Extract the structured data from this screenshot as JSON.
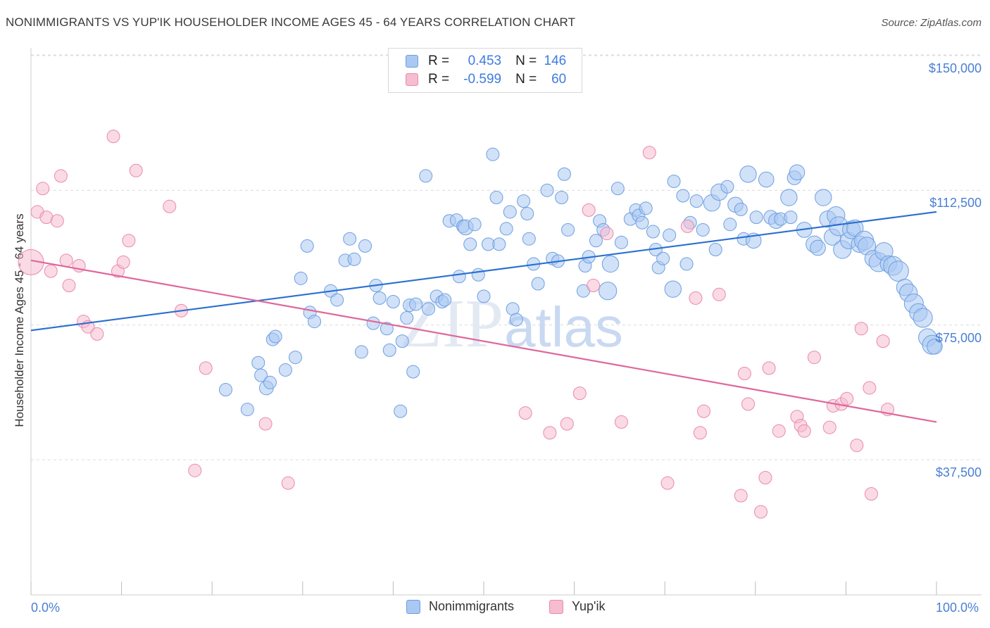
{
  "title": "NONIMMIGRANTS VS YUP'IK HOUSEHOLDER INCOME AGES 45 - 64 YEARS CORRELATION CHART",
  "source": "Source: ZipAtlas.com",
  "watermark": {
    "zip": "ZIP",
    "atlas": "atlas"
  },
  "colors": {
    "blue_fill": "#a9c8f2",
    "blue_stroke": "#6f9fe0",
    "blue_line": "#2a6fd0",
    "pink_fill": "#f6bcd0",
    "pink_stroke": "#e98aa9",
    "pink_line": "#e0679a",
    "tick_text": "#4a7fd4"
  },
  "legend": {
    "r_label": "R =",
    "n_label": "N =",
    "rows": [
      {
        "series": "Nonimmigrants",
        "r": "0.453",
        "n": "146"
      },
      {
        "series": "Yup'ik",
        "r": "-0.599",
        "n": "60"
      }
    ]
  },
  "chart_data": {
    "type": "scatter",
    "ylabel": "Householder Income Ages 45 - 64 years",
    "xlim": [
      0,
      100
    ],
    "ylim": [
      0,
      152000
    ],
    "x_tick_labels": [
      "0.0%",
      "100.0%"
    ],
    "y_ticks": [
      {
        "value": 37500,
        "label": "$37,500"
      },
      {
        "value": 75000,
        "label": "$75,000"
      },
      {
        "value": 112500,
        "label": "$112,500"
      },
      {
        "value": 150000,
        "label": "$150,000"
      }
    ],
    "grid": true,
    "series": [
      {
        "name": "Nonimmigrants",
        "trend": {
          "x": [
            0,
            100
          ],
          "y": [
            73500,
            106500
          ]
        },
        "points": [
          [
            21.5,
            57000,
            1
          ],
          [
            23.9,
            51500,
            1
          ],
          [
            25.1,
            64500,
            1
          ],
          [
            25.4,
            61000,
            1
          ],
          [
            26.0,
            57500,
            1.1
          ],
          [
            26.4,
            59000,
            1
          ],
          [
            26.7,
            71000,
            1
          ],
          [
            27.0,
            71800,
            1
          ],
          [
            28.1,
            62500,
            1
          ],
          [
            29.2,
            66000,
            1
          ],
          [
            29.8,
            88000,
            1
          ],
          [
            30.5,
            97000,
            1
          ],
          [
            30.8,
            78500,
            1
          ],
          [
            31.3,
            76000,
            1
          ],
          [
            33.1,
            84500,
            1
          ],
          [
            33.8,
            82000,
            1
          ],
          [
            34.7,
            93000,
            1
          ],
          [
            35.2,
            99000,
            1
          ],
          [
            35.7,
            93300,
            1
          ],
          [
            36.5,
            67500,
            1
          ],
          [
            36.9,
            97000,
            1
          ],
          [
            37.8,
            75500,
            1
          ],
          [
            38.1,
            86000,
            1
          ],
          [
            38.5,
            82500,
            1
          ],
          [
            39.3,
            74000,
            1
          ],
          [
            39.6,
            68000,
            1
          ],
          [
            40.0,
            81500,
            1
          ],
          [
            40.8,
            51000,
            1
          ],
          [
            41.0,
            70500,
            1
          ],
          [
            41.5,
            77000,
            1
          ],
          [
            41.8,
            80500,
            1
          ],
          [
            42.2,
            62000,
            1
          ],
          [
            42.5,
            80800,
            1
          ],
          [
            43.6,
            116500,
            1
          ],
          [
            43.9,
            79500,
            1
          ],
          [
            44.8,
            83000,
            1
          ],
          [
            45.4,
            81500,
            1
          ],
          [
            45.7,
            82000,
            1
          ],
          [
            46.2,
            104000,
            1
          ],
          [
            47.0,
            104200,
            1
          ],
          [
            47.3,
            88500,
            1
          ],
          [
            47.7,
            102500,
            1
          ],
          [
            48.0,
            102200,
            1.2
          ],
          [
            48.5,
            97500,
            1
          ],
          [
            49.0,
            103000,
            1
          ],
          [
            49.4,
            89000,
            1
          ],
          [
            50.0,
            83000,
            1
          ],
          [
            50.5,
            97500,
            1
          ],
          [
            51.0,
            122500,
            1
          ],
          [
            51.4,
            110500,
            1
          ],
          [
            51.7,
            97500,
            1
          ],
          [
            52.5,
            101800,
            1
          ],
          [
            52.9,
            106500,
            1
          ],
          [
            53.2,
            79500,
            1
          ],
          [
            53.6,
            76500,
            1
          ],
          [
            54.4,
            109500,
            1
          ],
          [
            54.8,
            106000,
            1
          ],
          [
            55.0,
            99000,
            1
          ],
          [
            55.5,
            92000,
            1
          ],
          [
            56.0,
            86500,
            1
          ],
          [
            57.0,
            112500,
            1
          ],
          [
            57.6,
            93500,
            1
          ],
          [
            58.2,
            92800,
            1
          ],
          [
            58.6,
            110500,
            1
          ],
          [
            58.9,
            117000,
            1
          ],
          [
            59.3,
            101500,
            1
          ],
          [
            61.0,
            84500,
            1
          ],
          [
            61.2,
            91500,
            1
          ],
          [
            61.6,
            94000,
            1
          ],
          [
            62.4,
            98500,
            1
          ],
          [
            62.8,
            104000,
            1
          ],
          [
            63.2,
            101500,
            1
          ],
          [
            63.7,
            84500,
            1.4
          ],
          [
            64.0,
            92000,
            1.3
          ],
          [
            64.8,
            113000,
            1
          ],
          [
            65.2,
            98000,
            1
          ],
          [
            66.2,
            104500,
            1
          ],
          [
            66.8,
            107000,
            1
          ],
          [
            67.1,
            105500,
            1
          ],
          [
            67.5,
            103500,
            1
          ],
          [
            67.9,
            107500,
            1
          ],
          [
            68.7,
            101000,
            1
          ],
          [
            69.0,
            96000,
            1
          ],
          [
            69.3,
            91000,
            1
          ],
          [
            69.8,
            93500,
            1
          ],
          [
            70.5,
            100000,
            1
          ],
          [
            70.9,
            85000,
            1.3
          ],
          [
            71.0,
            115000,
            1
          ],
          [
            72.0,
            111000,
            1
          ],
          [
            72.4,
            92000,
            1
          ],
          [
            72.8,
            103500,
            1
          ],
          [
            73.5,
            109500,
            1
          ],
          [
            74.2,
            101500,
            1
          ],
          [
            75.2,
            109000,
            1.3
          ],
          [
            75.6,
            96000,
            1
          ],
          [
            76.0,
            112000,
            1.3
          ],
          [
            76.9,
            113500,
            1
          ],
          [
            77.2,
            103000,
            1
          ],
          [
            77.8,
            108500,
            1.2
          ],
          [
            78.4,
            107200,
            1
          ],
          [
            78.7,
            99000,
            1
          ],
          [
            79.2,
            117000,
            1.3
          ],
          [
            79.8,
            98500,
            1.2
          ],
          [
            80.1,
            105000,
            1
          ],
          [
            81.2,
            115500,
            1.2
          ],
          [
            81.7,
            105000,
            1.1
          ],
          [
            82.3,
            104000,
            1.2
          ],
          [
            82.8,
            104500,
            1
          ],
          [
            83.7,
            110500,
            1.3
          ],
          [
            83.9,
            105000,
            1
          ],
          [
            84.3,
            116000,
            1.1
          ],
          [
            84.6,
            117500,
            1.2
          ],
          [
            85.4,
            101500,
            1.2
          ],
          [
            86.5,
            97500,
            1.3
          ],
          [
            86.9,
            96500,
            1.2
          ],
          [
            87.5,
            110500,
            1.3
          ],
          [
            88.0,
            104500,
            1.3
          ],
          [
            88.5,
            99500,
            1.3
          ],
          [
            88.9,
            105500,
            1.4
          ],
          [
            89.2,
            102500,
            1.5
          ],
          [
            89.6,
            96000,
            1.4
          ],
          [
            90.3,
            98500,
            1.3
          ],
          [
            90.6,
            101500,
            1.4
          ],
          [
            91.0,
            102000,
            1.3
          ],
          [
            91.5,
            97500,
            1.3
          ],
          [
            92.0,
            98500,
            1.5
          ],
          [
            92.3,
            97000,
            1.4
          ],
          [
            93.0,
            93500,
            1.3
          ],
          [
            93.6,
            92500,
            1.5
          ],
          [
            94.2,
            95500,
            1.4
          ],
          [
            94.7,
            92000,
            1.3
          ],
          [
            95.2,
            91500,
            1.5
          ],
          [
            95.8,
            90000,
            1.6
          ],
          [
            96.5,
            85500,
            1.3
          ],
          [
            96.9,
            84000,
            1.4
          ],
          [
            97.5,
            81000,
            1.5
          ],
          [
            98.0,
            78500,
            1.4
          ],
          [
            98.5,
            77000,
            1.5
          ],
          [
            99.0,
            71500,
            1.4
          ],
          [
            99.5,
            69500,
            1.5
          ],
          [
            99.8,
            69000,
            1.2
          ]
        ]
      },
      {
        "name": "Yup'ik",
        "trend": {
          "x": [
            0,
            100
          ],
          "y": [
            93000,
            48000
          ]
        },
        "points": [
          [
            0.0,
            92500,
            2.0
          ],
          [
            0.7,
            106500,
            1
          ],
          [
            1.3,
            113000,
            1
          ],
          [
            1.7,
            105000,
            1
          ],
          [
            2.2,
            90000,
            1
          ],
          [
            2.9,
            104000,
            1
          ],
          [
            3.3,
            116500,
            1
          ],
          [
            3.9,
            93000,
            1
          ],
          [
            4.2,
            86000,
            1
          ],
          [
            5.3,
            91500,
            1
          ],
          [
            5.8,
            76000,
            1
          ],
          [
            6.3,
            74500,
            1
          ],
          [
            7.3,
            72500,
            1
          ],
          [
            9.1,
            127500,
            1
          ],
          [
            9.6,
            90000,
            1
          ],
          [
            10.2,
            92500,
            1
          ],
          [
            10.8,
            98500,
            1
          ],
          [
            11.6,
            118000,
            1
          ],
          [
            15.3,
            108000,
            1
          ],
          [
            16.6,
            79000,
            1
          ],
          [
            18.1,
            34500,
            1
          ],
          [
            19.3,
            63000,
            1
          ],
          [
            25.9,
            47500,
            1
          ],
          [
            28.4,
            31000,
            1
          ],
          [
            54.6,
            50500,
            1
          ],
          [
            57.3,
            45000,
            1
          ],
          [
            59.2,
            47500,
            1
          ],
          [
            60.6,
            56000,
            1
          ],
          [
            61.6,
            107000,
            1
          ],
          [
            62.1,
            86000,
            1
          ],
          [
            63.6,
            100500,
            1
          ],
          [
            65.2,
            48000,
            1
          ],
          [
            68.3,
            123000,
            1
          ],
          [
            70.3,
            31000,
            1
          ],
          [
            72.5,
            102500,
            1
          ],
          [
            73.4,
            82500,
            1
          ],
          [
            73.9,
            45000,
            1
          ],
          [
            74.3,
            51000,
            1
          ],
          [
            76.0,
            83500,
            1
          ],
          [
            78.4,
            27500,
            1
          ],
          [
            78.8,
            61500,
            1
          ],
          [
            79.2,
            53000,
            1
          ],
          [
            80.6,
            23000,
            1
          ],
          [
            81.1,
            32500,
            1
          ],
          [
            81.5,
            63000,
            1
          ],
          [
            82.6,
            45500,
            1
          ],
          [
            84.6,
            49500,
            1
          ],
          [
            85.0,
            47000,
            1
          ],
          [
            85.4,
            45500,
            1
          ],
          [
            86.5,
            66000,
            1
          ],
          [
            88.2,
            46500,
            1
          ],
          [
            88.6,
            52500,
            1
          ],
          [
            89.5,
            53000,
            1
          ],
          [
            90.1,
            54500,
            1
          ],
          [
            91.2,
            41500,
            1
          ],
          [
            91.7,
            74000,
            1
          ],
          [
            92.6,
            57500,
            1
          ],
          [
            92.8,
            28000,
            1
          ],
          [
            94.1,
            70500,
            1
          ],
          [
            94.6,
            51500,
            1
          ]
        ]
      }
    ]
  }
}
